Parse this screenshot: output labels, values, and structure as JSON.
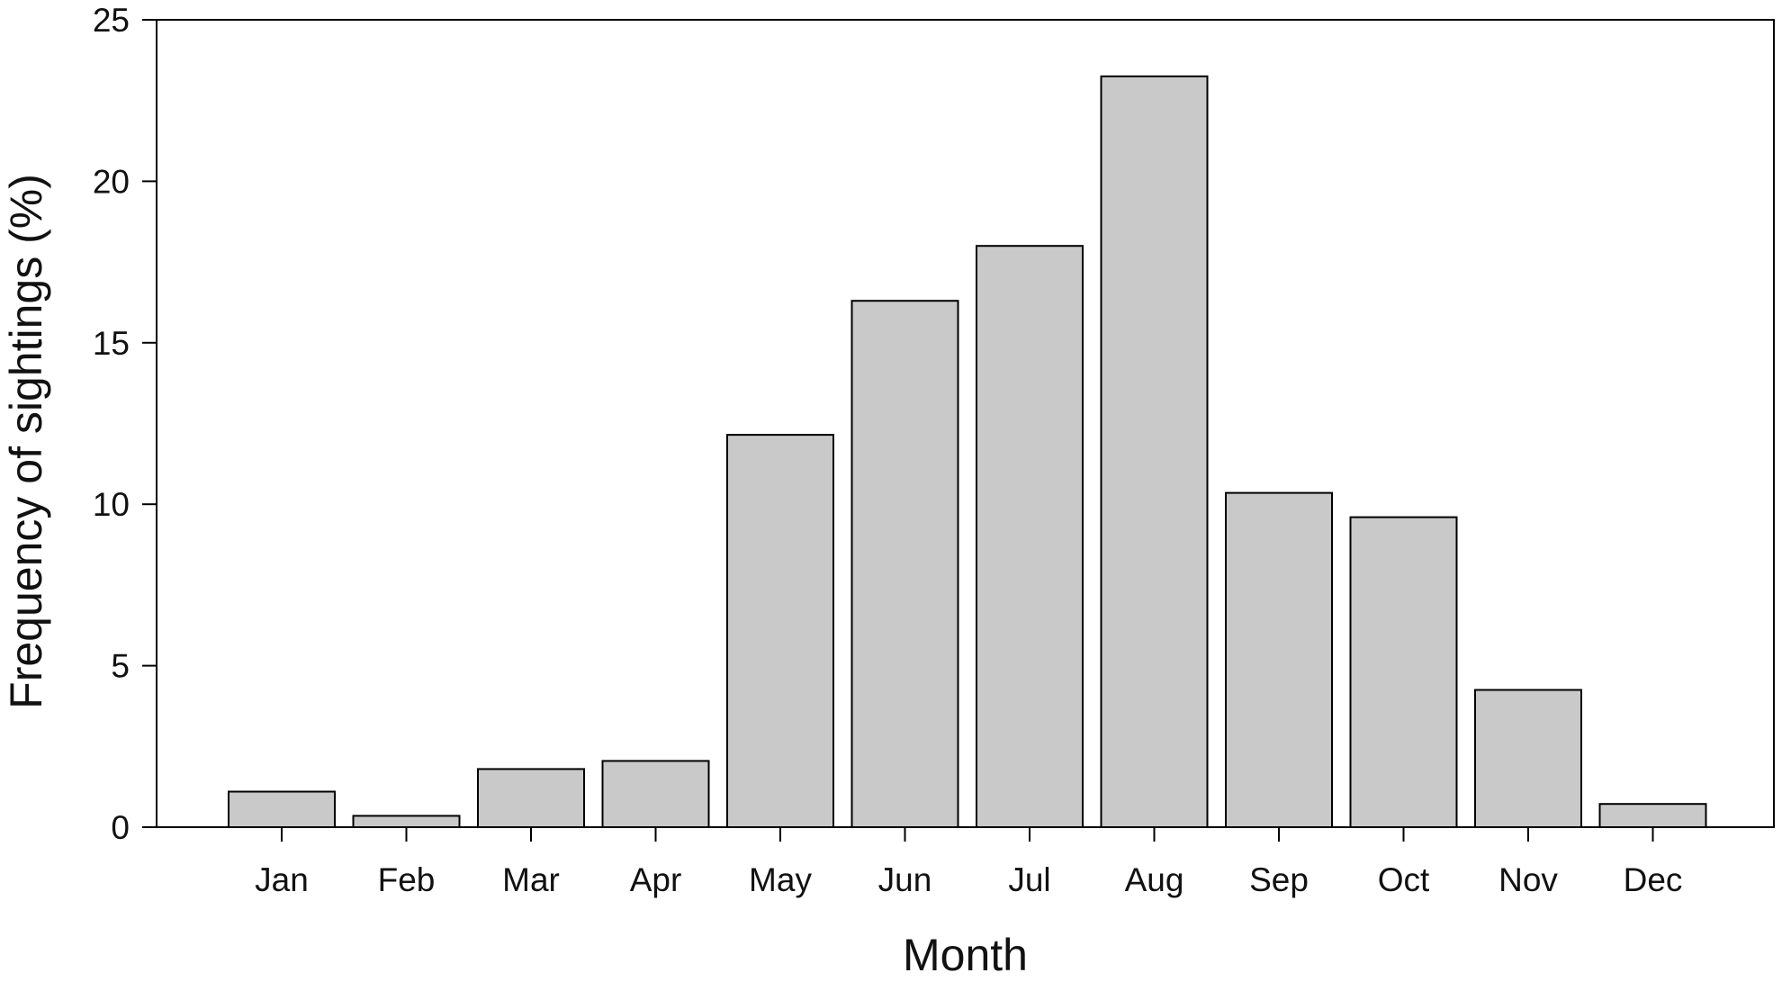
{
  "chart_data": {
    "type": "bar",
    "categories": [
      "Jan",
      "Feb",
      "Mar",
      "Apr",
      "May",
      "Jun",
      "Jul",
      "Aug",
      "Sep",
      "Oct",
      "Nov",
      "Dec"
    ],
    "values": [
      1.1,
      0.35,
      1.8,
      2.05,
      12.15,
      16.3,
      18.0,
      23.25,
      10.35,
      9.6,
      4.25,
      0.72
    ],
    "xlabel": "Month",
    "ylabel": "Frequency of sightings (%)",
    "ylim": [
      0,
      25
    ],
    "yticks": [
      "0",
      "5",
      "10",
      "15",
      "20",
      "25"
    ],
    "grid": false,
    "legend": "none",
    "colors": {
      "bar_fill": "#c9c9c9",
      "bar_stroke": "#000000",
      "axis": "#000000",
      "text": "#111111",
      "background": "#ffffff"
    }
  }
}
